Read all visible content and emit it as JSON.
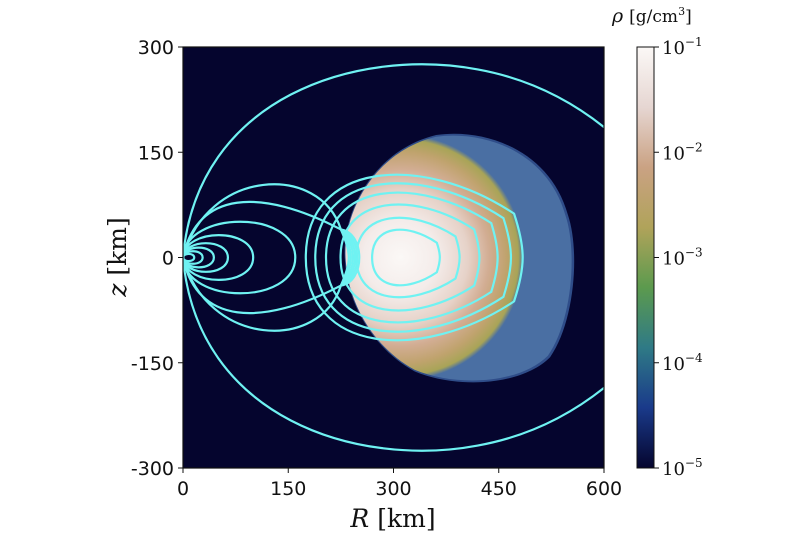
{
  "chart_data": {
    "type": "heatmap",
    "title": "",
    "xlabel": {
      "var": "R",
      "unit": "[km]"
    },
    "ylabel": {
      "var": "z",
      "unit": "[km]"
    },
    "xlim": [
      0,
      600
    ],
    "ylim": [
      -300,
      300
    ],
    "xticks": [
      "0",
      "150",
      "300",
      "450",
      "600"
    ],
    "xtick_values": [
      0,
      150,
      300,
      450,
      600
    ],
    "yticks": [
      "300",
      "150",
      "0",
      "-150",
      "-300"
    ],
    "ytick_values": [
      300,
      150,
      0,
      -150,
      -300
    ],
    "colorbar": {
      "label": {
        "var": "ρ",
        "unit": "[g/cm",
        "exp": "3",
        "close": "]"
      },
      "scale": "log",
      "range": [
        1e-05,
        0.1
      ],
      "ticks": [
        {
          "value": 0.1,
          "base": "10",
          "exp": "−1"
        },
        {
          "value": 0.01,
          "base": "10",
          "exp": "−2"
        },
        {
          "value": 0.001,
          "base": "10",
          "exp": "−3"
        },
        {
          "value": 0.0001,
          "base": "10",
          "exp": "−4"
        },
        {
          "value": 1e-05,
          "base": "10",
          "exp": "−5"
        }
      ],
      "colors": [
        "#05052e",
        "#1a3a8a",
        "#2f7a86",
        "#5c9a4e",
        "#b0a35a",
        "#caa283",
        "#e6d6d2",
        "#fbf8f6"
      ]
    },
    "torus": {
      "center": [
        310,
        0
      ],
      "boundary_R": [
        230,
        550
      ],
      "boundary_z": [
        -175,
        175
      ]
    },
    "field_line_color": "#6ff2f2",
    "background_color": "#05052e"
  }
}
